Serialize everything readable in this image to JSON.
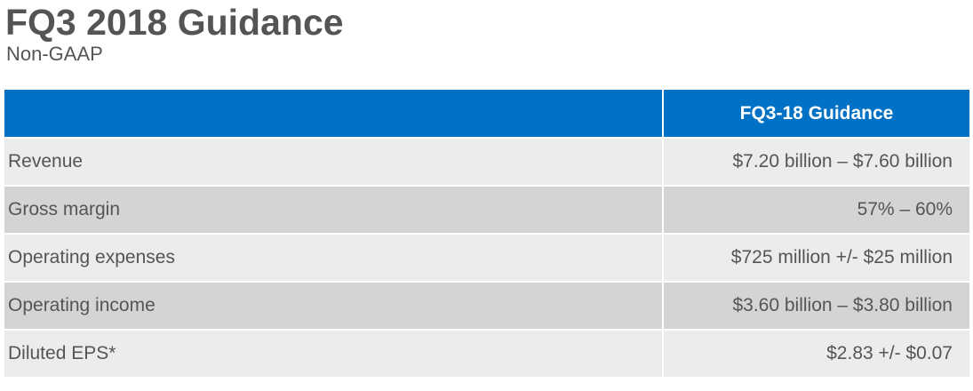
{
  "slide": {
    "title": "FQ3 2018 Guidance",
    "subtitle": "Non-GAAP"
  },
  "table": {
    "header": {
      "label": "",
      "value": "FQ3-18 Guidance"
    },
    "rows": [
      {
        "label": "Revenue",
        "value": "$7.20 billion – $7.60 billion"
      },
      {
        "label": "Gross margin",
        "value": "57% – 60%"
      },
      {
        "label": "Operating expenses",
        "value": "$725 million +/- $25 million"
      },
      {
        "label": "Operating income",
        "value": "$3.60 billion – $3.80 billion"
      },
      {
        "label": "Diluted EPS*",
        "value": "$2.83 +/- $0.07"
      }
    ]
  },
  "colors": {
    "header_bg": "#0072c6",
    "row_light": "#ececec",
    "row_dark": "#d4d4d4",
    "text": "#555555"
  }
}
